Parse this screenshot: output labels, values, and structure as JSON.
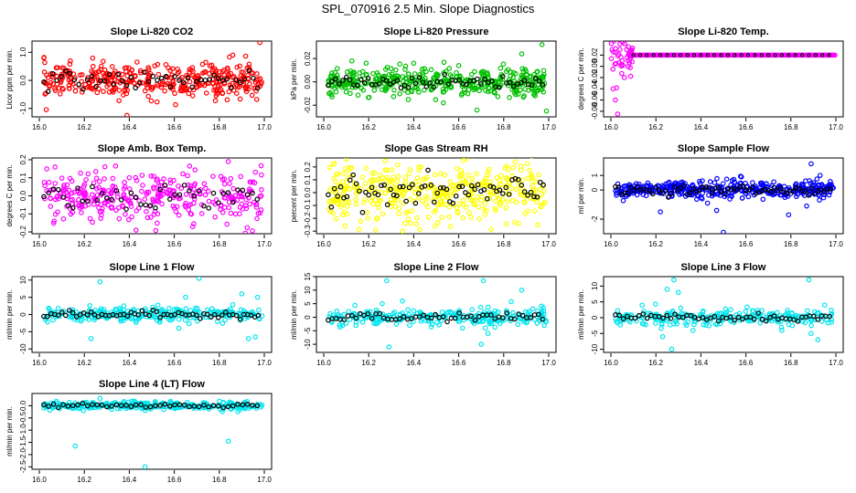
{
  "figure_title": "SPL_070916  2.5 Min. Slope Diagnostics",
  "chart_data": [
    {
      "type": "scatter",
      "title": "Slope Li-820 CO2",
      "ylabel": "Licor ppm per min.",
      "color": "#ff0000",
      "x_range": [
        16.0,
        17.0
      ],
      "ylim": [
        -1.3,
        1.4
      ],
      "x_ticks": [
        "16.0",
        "16.2",
        "16.4",
        "16.6",
        "16.8",
        "17.0"
      ],
      "y_ticks": [
        -1.0,
        0.0,
        1.0
      ],
      "y_tick_labels": [
        "-1.0",
        "0.0",
        "1.0"
      ],
      "noise": 0.3,
      "count": 380,
      "black_count": 50,
      "spikes": [
        [
          16.39,
          -1.25
        ],
        [
          16.98,
          1.35
        ],
        [
          16.02,
          0.8
        ],
        [
          16.86,
          0.9
        ]
      ]
    },
    {
      "type": "scatter",
      "title": "Slope Li-820 Pressure",
      "ylabel": "kPa per min.",
      "color": "#00c000",
      "x_range": [
        16.0,
        17.0
      ],
      "ylim": [
        -0.03,
        0.035
      ],
      "x_ticks": [
        "16.0",
        "16.2",
        "16.4",
        "16.6",
        "16.8",
        "17.0"
      ],
      "y_ticks": [
        -0.02,
        0.0,
        0.02
      ],
      "y_tick_labels": [
        "-0.02",
        "0.00",
        "0.02"
      ],
      "noise": 0.006,
      "count": 420,
      "black_count": 60,
      "spikes": [
        [
          16.97,
          0.032
        ],
        [
          16.99,
          -0.025
        ],
        [
          16.88,
          0.024
        ],
        [
          16.4,
          0.016
        ],
        [
          16.6,
          0.014
        ]
      ]
    },
    {
      "type": "scatter",
      "title": "Slope Li-820 Temp.",
      "ylabel": "degrees C per min.",
      "color": "#ff00ff",
      "x_range": [
        16.0,
        17.0
      ],
      "ylim": [
        -0.09,
        0.045
      ],
      "x_ticks": [
        "16.0",
        "16.2",
        "16.4",
        "16.6",
        "16.8",
        "17.0"
      ],
      "y_ticks": [
        -0.08,
        -0.06,
        -0.04,
        -0.02,
        0.0,
        0.02
      ],
      "y_tick_labels": [
        "-0.08",
        "-0.06",
        "-0.04",
        "-0.02",
        "0.00",
        "0.02"
      ],
      "noise": 0.0,
      "count": 200,
      "black_count": 30,
      "spikes": [
        [
          16.01,
          -0.04
        ],
        [
          16.02,
          -0.06
        ],
        [
          16.03,
          -0.085
        ],
        [
          16.04,
          0.04
        ],
        [
          16.05,
          0.01
        ],
        [
          16.06,
          -0.02
        ],
        [
          16.02,
          0.025
        ],
        [
          16.07,
          0.03
        ]
      ]
    },
    {
      "type": "scatter",
      "title": "Slope Amb. Box Temp.",
      "ylabel": "degrees C per min.",
      "color": "#ff00ff",
      "x_range": [
        16.0,
        17.0
      ],
      "ylim": [
        -0.21,
        0.21
      ],
      "x_ticks": [
        "16.0",
        "16.2",
        "16.4",
        "16.6",
        "16.8",
        "17.0"
      ],
      "y_ticks": [
        -0.2,
        -0.1,
        0.0,
        0.1,
        0.2
      ],
      "y_tick_labels": [
        "-0.2",
        "-0.1",
        "0.0",
        "0.1",
        "0.2"
      ],
      "noise": 0.07,
      "count": 340,
      "black_count": 45,
      "spikes": [
        [
          16.84,
          0.19
        ],
        [
          16.43,
          -0.19
        ]
      ]
    },
    {
      "type": "scatter",
      "title": "Slope Gas Stream RH",
      "ylabel": "percent per min.",
      "color": "#ffff00",
      "x_range": [
        16.0,
        17.0
      ],
      "ylim": [
        -0.32,
        0.27
      ],
      "x_ticks": [
        "16.0",
        "16.2",
        "16.4",
        "16.6",
        "16.8",
        "17.0"
      ],
      "y_ticks": [
        -0.3,
        -0.2,
        -0.1,
        0.0,
        0.1,
        0.2
      ],
      "y_tick_labels": [
        "-0.3",
        "-0.2",
        "-0.1",
        "0.0",
        "0.1",
        "0.2"
      ],
      "noise": 0.12,
      "count": 420,
      "black_count": 70,
      "spikes": [
        [
          16.1,
          0.26
        ],
        [
          16.35,
          -0.3
        ],
        [
          16.62,
          0.25
        ]
      ]
    },
    {
      "type": "scatter",
      "title": "Slope Sample Flow",
      "ylabel": "ml per min.",
      "color": "#0000ff",
      "x_range": [
        16.0,
        17.0
      ],
      "ylim": [
        -3.0,
        2.2
      ],
      "x_ticks": [
        "16.0",
        "16.2",
        "16.4",
        "16.6",
        "16.8",
        "17.0"
      ],
      "y_ticks": [
        -2.0,
        0.0,
        1.0
      ],
      "y_tick_labels": [
        "-2",
        "0",
        "1"
      ],
      "noise": 0.3,
      "count": 420,
      "black_count": 70,
      "spikes": [
        [
          16.89,
          1.8
        ],
        [
          16.5,
          -2.9
        ],
        [
          16.22,
          -1.5
        ],
        [
          16.47,
          -1.4
        ],
        [
          16.79,
          -1.7
        ],
        [
          16.87,
          -1.1
        ],
        [
          16.93,
          1.0
        ],
        [
          16.58,
          0.9
        ]
      ]
    },
    {
      "type": "scatter",
      "title": "Slope Line 1 Flow",
      "ylabel": "ml/min per min.",
      "color": "#00e5ee",
      "x_range": [
        16.0,
        17.0
      ],
      "ylim": [
        -11,
        11
      ],
      "x_ticks": [
        "16.0",
        "16.2",
        "16.4",
        "16.6",
        "16.8",
        "17.0"
      ],
      "y_ticks": [
        -10,
        -5,
        0,
        5,
        10
      ],
      "y_tick_labels": [
        "-10",
        "-5",
        "0",
        "5",
        "10"
      ],
      "noise": 1.0,
      "count": 260,
      "black_count": 60,
      "spikes": [
        [
          16.27,
          9.5
        ],
        [
          16.71,
          10.5
        ],
        [
          16.23,
          -7
        ],
        [
          16.93,
          -7
        ],
        [
          16.96,
          -6.5
        ],
        [
          16.9,
          6
        ],
        [
          16.97,
          5
        ],
        [
          16.65,
          5
        ],
        [
          16.62,
          -4
        ]
      ]
    },
    {
      "type": "scatter",
      "title": "Slope Line 2 Flow",
      "ylabel": "ml/min per min.",
      "color": "#00e5ee",
      "x_range": [
        16.0,
        17.0
      ],
      "ylim": [
        -13,
        15
      ],
      "x_ticks": [
        "16.0",
        "16.2",
        "16.4",
        "16.6",
        "16.8",
        "17.0"
      ],
      "y_ticks": [
        -10,
        -5,
        0,
        5,
        10,
        15
      ],
      "y_tick_labels": [
        "-10",
        "-5",
        "0",
        "5",
        "10",
        "15"
      ],
      "noise": 1.5,
      "count": 260,
      "black_count": 55,
      "spikes": [
        [
          16.29,
          -11
        ],
        [
          16.28,
          13.5
        ],
        [
          16.71,
          13.5
        ],
        [
          16.88,
          10
        ],
        [
          16.7,
          -10
        ],
        [
          16.98,
          -3
        ],
        [
          16.73,
          -6
        ],
        [
          16.26,
          5
        ],
        [
          16.35,
          6
        ]
      ]
    },
    {
      "type": "scatter",
      "title": "Slope Line 3 Flow",
      "ylabel": "ml/min per min.",
      "color": "#00e5ee",
      "x_range": [
        16.0,
        17.0
      ],
      "ylim": [
        -11,
        13
      ],
      "x_ticks": [
        "16.0",
        "16.2",
        "16.4",
        "16.6",
        "16.8",
        "17.0"
      ],
      "y_ticks": [
        -10,
        -5,
        0,
        5,
        10
      ],
      "y_tick_labels": [
        "-10",
        "-5",
        "0",
        "5",
        "10"
      ],
      "noise": 1.2,
      "count": 260,
      "black_count": 55,
      "spikes": [
        [
          16.28,
          12
        ],
        [
          16.27,
          -10
        ],
        [
          16.25,
          9
        ],
        [
          16.3,
          8
        ],
        [
          16.88,
          12
        ],
        [
          16.89,
          -5
        ],
        [
          16.92,
          -7
        ],
        [
          16.95,
          4
        ],
        [
          16.23,
          -6
        ],
        [
          16.76,
          -4
        ]
      ]
    },
    {
      "type": "scatter",
      "title": "Slope Line 4 (LT) Flow",
      "ylabel": "ml/min per min.",
      "color": "#00e5ee",
      "x_range": [
        16.0,
        17.0
      ],
      "ylim": [
        -2.6,
        0.5
      ],
      "x_ticks": [
        "16.0",
        "16.2",
        "16.4",
        "16.6",
        "16.8",
        "17.0"
      ],
      "y_ticks": [
        -2.5,
        -2.0,
        -1.5,
        -1.0,
        -0.5,
        0.0
      ],
      "y_tick_labels": [
        "-2.5",
        "-2.0",
        "-1.5",
        "-1.0",
        "-0.5",
        "0.0"
      ],
      "noise": 0.08,
      "count": 330,
      "black_count": 45,
      "spikes": [
        [
          16.47,
          -2.5
        ],
        [
          16.16,
          -1.65
        ],
        [
          16.84,
          -1.45
        ],
        [
          16.27,
          0.3
        ]
      ]
    }
  ]
}
